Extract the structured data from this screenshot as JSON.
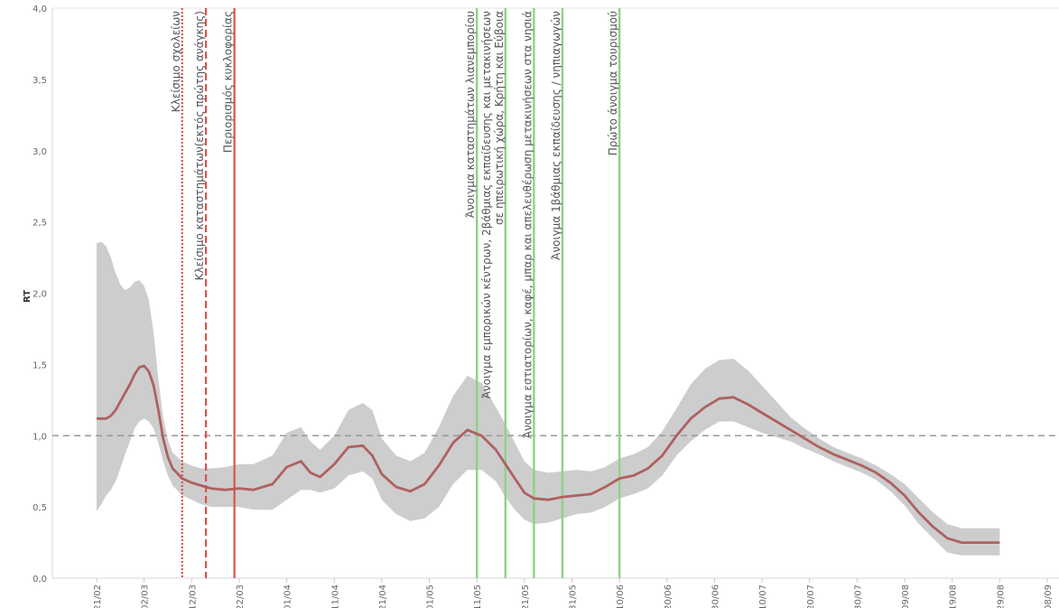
{
  "chart_data": {
    "type": "line",
    "title": "",
    "xlabel": "",
    "ylabel": "RT",
    "ylim": [
      0,
      4
    ],
    "yticks": [
      "0,0",
      "0,5",
      "1,0",
      "1,5",
      "2,0",
      "2,5",
      "3,0",
      "3,5",
      "4,0"
    ],
    "xticks": [
      "21/02",
      "02/03",
      "12/03",
      "22/03",
      "01/04",
      "11/04",
      "21/04",
      "01/05",
      "11/05",
      "21/05",
      "31/05",
      "10/06",
      "20/06",
      "30/06",
      "10/07",
      "20/07",
      "30/07",
      "09/08",
      "19/08",
      "29/08",
      "08/09"
    ],
    "reference_line": {
      "y": 1.0,
      "style": "dashed"
    },
    "grid": false,
    "colors": {
      "line": "#b06060",
      "band": "#c8c8c8",
      "red_event": "#d9534f",
      "green_event": "#8fd18a",
      "reference": "#999999"
    },
    "series": [
      {
        "name": "",
        "x": [
          0,
          1,
          2,
          3,
          4,
          5,
          6,
          7,
          8,
          9,
          10,
          11,
          12,
          13,
          14,
          15,
          16,
          18,
          20,
          22,
          24,
          27,
          30,
          33,
          37,
          40,
          43,
          45,
          47,
          50,
          53,
          56,
          58,
          60,
          63,
          66,
          69,
          72,
          75,
          78,
          81,
          84,
          86,
          88,
          90,
          92,
          95,
          98,
          101,
          104,
          107,
          110,
          113,
          116,
          119,
          122,
          125,
          128,
          131,
          134,
          137,
          140,
          143,
          146,
          149,
          152,
          155,
          158,
          161,
          164,
          167,
          170,
          173,
          176,
          179,
          182,
          185,
          188,
          189,
          190
        ],
        "values": [
          1.12,
          1.12,
          1.12,
          1.14,
          1.18,
          1.24,
          1.3,
          1.36,
          1.43,
          1.48,
          1.49,
          1.45,
          1.35,
          1.18,
          0.98,
          0.85,
          0.77,
          0.7,
          0.67,
          0.65,
          0.63,
          0.62,
          0.63,
          0.62,
          0.66,
          0.78,
          0.82,
          0.74,
          0.71,
          0.8,
          0.92,
          0.93,
          0.86,
          0.73,
          0.64,
          0.61,
          0.66,
          0.79,
          0.95,
          1.04,
          1.0,
          0.9,
          0.8,
          0.7,
          0.6,
          0.56,
          0.55,
          0.57,
          0.58,
          0.59,
          0.64,
          0.7,
          0.72,
          0.77,
          0.86,
          1.0,
          1.12,
          1.2,
          1.26,
          1.27,
          1.22,
          1.16,
          1.1,
          1.04,
          0.98,
          0.92,
          0.87,
          0.83,
          0.79,
          0.74,
          0.67,
          0.58,
          0.46,
          0.36,
          0.28,
          0.25,
          0.25,
          0.25,
          0.25,
          0.25
        ],
        "lower": [
          0.47,
          0.52,
          0.58,
          0.62,
          0.68,
          0.77,
          0.87,
          0.96,
          1.05,
          1.1,
          1.12,
          1.1,
          1.05,
          0.95,
          0.82,
          0.72,
          0.65,
          0.58,
          0.55,
          0.52,
          0.5,
          0.5,
          0.5,
          0.48,
          0.48,
          0.55,
          0.62,
          0.62,
          0.6,
          0.63,
          0.72,
          0.75,
          0.7,
          0.55,
          0.45,
          0.4,
          0.42,
          0.5,
          0.66,
          0.76,
          0.76,
          0.68,
          0.57,
          0.48,
          0.41,
          0.38,
          0.39,
          0.42,
          0.45,
          0.46,
          0.5,
          0.56,
          0.59,
          0.63,
          0.72,
          0.86,
          0.96,
          1.04,
          1.1,
          1.1,
          1.06,
          1.02,
          0.99,
          0.96,
          0.91,
          0.87,
          0.82,
          0.78,
          0.74,
          0.69,
          0.61,
          0.51,
          0.38,
          0.28,
          0.18,
          0.16,
          0.16,
          0.16,
          0.16,
          0.16
        ],
        "upper": [
          2.35,
          2.36,
          2.33,
          2.25,
          2.14,
          2.06,
          2.02,
          2.04,
          2.08,
          2.09,
          2.05,
          1.95,
          1.72,
          1.4,
          1.13,
          0.97,
          0.88,
          0.82,
          0.79,
          0.77,
          0.77,
          0.78,
          0.8,
          0.8,
          0.86,
          1.02,
          1.06,
          0.96,
          0.9,
          1.0,
          1.18,
          1.23,
          1.18,
          0.98,
          0.86,
          0.82,
          0.88,
          1.06,
          1.28,
          1.42,
          1.37,
          1.2,
          1.08,
          0.95,
          0.82,
          0.76,
          0.74,
          0.75,
          0.76,
          0.75,
          0.78,
          0.84,
          0.87,
          0.92,
          1.03,
          1.19,
          1.36,
          1.47,
          1.53,
          1.54,
          1.46,
          1.35,
          1.24,
          1.13,
          1.05,
          0.98,
          0.92,
          0.88,
          0.84,
          0.79,
          0.73,
          0.66,
          0.56,
          0.46,
          0.38,
          0.35,
          0.35,
          0.35,
          0.35,
          0.35
        ]
      }
    ],
    "events": [
      {
        "day": 18,
        "label": "Κλείσιμο σχολείων",
        "color": "red",
        "style": "dotted"
      },
      {
        "day": 23,
        "label": "Κλείσιμο καταστημάτων(εκτός πρώτης ανάγκης)",
        "color": "red",
        "style": "dashed"
      },
      {
        "day": 29,
        "label": "Περιορισμός κυκλοφορίας",
        "color": "red",
        "style": "solid"
      },
      {
        "day": 80,
        "label": "Άνοιγμα καταστημάτων λιανεμπορίου",
        "color": "green",
        "style": "solid"
      },
      {
        "day": 86,
        "label": "Άνοιγμα εμπορικών κέντρων, 2βάθμιας εκπαίδευσης και μετακινήσεων σε ηπειρωτική χώρα, Κρήτη και Εύβοια",
        "color": "green",
        "style": "solid"
      },
      {
        "day": 92,
        "label": "Άνοιγμα εστιατορίων, καφέ, μπαρ και απελευθέρωση μετακινήσεων στα νησιά",
        "color": "green",
        "style": "solid"
      },
      {
        "day": 98,
        "label": "Άνοιγμα 1βάθμιας εκπαίδευσης / νηπιαγωγών",
        "color": "green",
        "style": "solid"
      },
      {
        "day": 110,
        "label": "Πρώτο άνοιγμα τουρισμού",
        "color": "green",
        "style": "solid"
      }
    ]
  }
}
